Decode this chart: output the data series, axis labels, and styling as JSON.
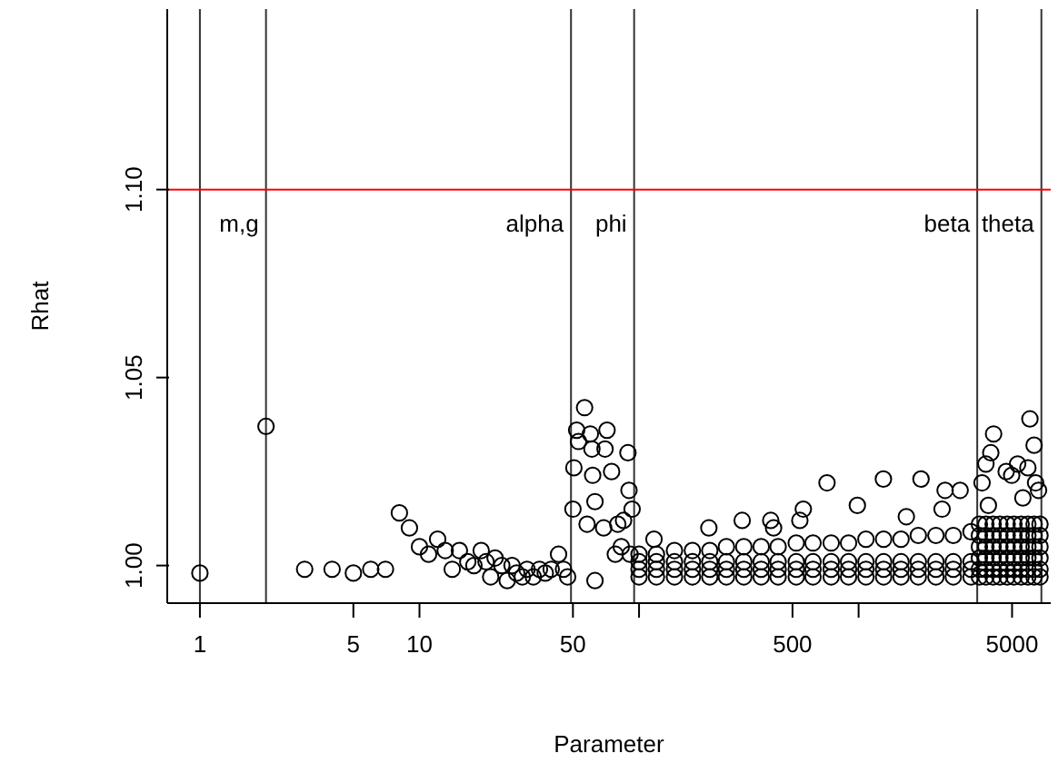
{
  "chart_data": {
    "type": "scatter",
    "xlabel": "Parameter",
    "ylabel": "Rhat",
    "log": "x",
    "marker": "circle",
    "xlim": [
      0.71,
      7500
    ],
    "ylim": [
      0.99,
      1.148
    ],
    "xticks": [
      1,
      5,
      10,
      50,
      {
        "value": 100,
        "label": null
      },
      500,
      {
        "value": 1000,
        "label": null
      },
      5000
    ],
    "yticks": [
      {
        "value": 1,
        "label": "1.00"
      },
      {
        "value": 1.05,
        "label": "1.05"
      },
      {
        "value": 1.1,
        "label": "1.10"
      }
    ],
    "ref_lines": [
      {
        "axis": "x",
        "value": 1,
        "label": null,
        "color": "#333333"
      },
      {
        "axis": "x",
        "value": 2,
        "label": "m,g",
        "color": "#333333"
      },
      {
        "axis": "x",
        "value": 49,
        "label": "alpha",
        "color": "#333333"
      },
      {
        "axis": "x",
        "value": 95,
        "label": "phi",
        "color": "#333333"
      },
      {
        "axis": "x",
        "value": 3470,
        "label": "beta",
        "color": "#333333"
      },
      {
        "axis": "x",
        "value": 6800,
        "label": "theta",
        "color": "#333333"
      },
      {
        "axis": "y",
        "value": 1.1,
        "label": null,
        "color": "#ff0000"
      }
    ],
    "series": [
      {
        "color": "#000000",
        "x": [
          1,
          2
        ],
        "values": [
          0.998,
          1.037
        ]
      },
      {
        "color": "#000000",
        "x": [
          3,
          4,
          5,
          6,
          7,
          8.1,
          9,
          10,
          11,
          12.1,
          13.1,
          14.1,
          15.2,
          16.6,
          17.7,
          19.1,
          20.1,
          21.1,
          22.1,
          23.7,
          25.1,
          26.4,
          27.7,
          29.4,
          30.9,
          33,
          35.2,
          37.4,
          39.8,
          43,
          45.3,
          47.3
        ],
        "values": [
          0.999,
          0.999,
          0.998,
          0.999,
          0.999,
          1.014,
          1.01,
          1.005,
          1.003,
          1.007,
          1.004,
          0.999,
          1.004,
          1.001,
          1.0,
          1.004,
          1.001,
          0.997,
          1.002,
          1.0,
          0.996,
          1.0,
          0.998,
          0.997,
          0.999,
          0.997,
          0.999,
          0.998,
          0.999,
          1.003,
          0.999,
          0.997
        ]
      },
      {
        "color": "#000000",
        "x": [
          50,
          50.5,
          52,
          53,
          56.5,
          60,
          61,
          61.5,
          58,
          63,
          63,
          69,
          70,
          71.5,
          75,
          78,
          80,
          83,
          85,
          89,
          90,
          91,
          93
        ],
        "values": [
          1.015,
          1.026,
          1.036,
          1.033,
          1.042,
          1.035,
          1.031,
          1.024,
          1.011,
          1.017,
          0.996,
          1.01,
          1.031,
          1.036,
          1.025,
          1.003,
          1.011,
          1.005,
          1.012,
          1.03,
          1.02,
          1.003,
          1.015
        ]
      },
      {
        "color": "#000000",
        "x": [
          100,
          120,
          145,
          175,
          210,
          250,
          300,
          360,
          430,
          520,
          620,
          750,
          900,
          1080,
          1300,
          1560,
          1870,
          2250,
          2700,
          3250,
          100,
          120,
          145,
          175,
          210,
          250,
          300,
          360,
          430,
          520,
          620,
          750,
          900,
          1080,
          1300,
          1560,
          1870,
          2250,
          2700,
          3250,
          100,
          120,
          145,
          175,
          210,
          250,
          300,
          360,
          430,
          520,
          620,
          750,
          900,
          1080,
          1300,
          1560,
          1870,
          2250,
          2700,
          3250,
          100,
          120,
          145,
          175,
          210,
          250,
          300,
          360,
          430,
          520,
          620,
          750,
          900,
          1080,
          1300,
          1560,
          1870,
          2250,
          2700,
          3250,
          117,
          208,
          295,
          398,
          410,
          540,
          560,
          718,
          987,
          1297,
          1650,
          1924,
          2400,
          2477,
          2900
        ],
        "values": [
          0.997,
          0.997,
          0.997,
          0.997,
          0.997,
          0.997,
          0.997,
          0.997,
          0.997,
          0.997,
          0.997,
          0.997,
          0.997,
          0.997,
          0.997,
          0.997,
          0.997,
          0.997,
          0.997,
          0.997,
          0.999,
          0.999,
          0.999,
          0.999,
          0.999,
          0.999,
          0.999,
          0.999,
          0.999,
          0.999,
          0.999,
          0.999,
          0.999,
          0.999,
          0.999,
          0.999,
          0.999,
          0.999,
          0.999,
          0.999,
          1.001,
          1.001,
          1.001,
          1.001,
          1.001,
          1.001,
          1.001,
          1.001,
          1.001,
          1.001,
          1.001,
          1.001,
          1.001,
          1.001,
          1.001,
          1.001,
          1.001,
          1.001,
          1.001,
          1.001,
          1.003,
          1.003,
          1.004,
          1.004,
          1.004,
          1.005,
          1.005,
          1.005,
          1.005,
          1.006,
          1.006,
          1.006,
          1.006,
          1.007,
          1.007,
          1.007,
          1.008,
          1.008,
          1.008,
          1.009,
          1.007,
          1.01,
          1.012,
          1.012,
          1.01,
          1.012,
          1.015,
          1.022,
          1.016,
          1.023,
          1.013,
          1.023,
          1.015,
          1.02,
          1.02
        ]
      },
      {
        "color": "#000000",
        "x": [
          3550,
          3800,
          4100,
          4400,
          4750,
          5100,
          5500,
          5900,
          6300,
          6700,
          3550,
          3800,
          4100,
          4400,
          4750,
          5100,
          5500,
          5900,
          6300,
          6700,
          3550,
          3800,
          4100,
          4400,
          4750,
          5100,
          5500,
          5900,
          6300,
          6700,
          3550,
          3800,
          4100,
          4400,
          4750,
          5100,
          5500,
          5900,
          6300,
          6700,
          3550,
          3800,
          4100,
          4400,
          4750,
          5100,
          5500,
          5900,
          6300,
          6700,
          3550,
          3800,
          4100,
          4400,
          4750,
          5100,
          5500,
          5900,
          6300,
          6700,
          3650,
          3800,
          4000,
          4120,
          4700,
          4980,
          5300,
          5900,
          6030,
          6300,
          6400,
          3900,
          5600,
          6600
        ],
        "values": [
          0.997,
          0.997,
          0.997,
          0.997,
          0.997,
          0.997,
          0.997,
          0.997,
          0.997,
          0.997,
          0.999,
          0.999,
          0.999,
          0.999,
          0.999,
          0.999,
          0.999,
          0.999,
          0.999,
          0.999,
          1.002,
          1.002,
          1.002,
          1.002,
          1.002,
          1.002,
          1.002,
          1.002,
          1.002,
          1.002,
          1.005,
          1.005,
          1.005,
          1.005,
          1.005,
          1.005,
          1.005,
          1.005,
          1.005,
          1.005,
          1.008,
          1.008,
          1.008,
          1.008,
          1.008,
          1.008,
          1.008,
          1.008,
          1.008,
          1.008,
          1.011,
          1.011,
          1.011,
          1.011,
          1.011,
          1.011,
          1.011,
          1.011,
          1.011,
          1.011,
          1.022,
          1.027,
          1.03,
          1.035,
          1.025,
          1.024,
          1.027,
          1.026,
          1.039,
          1.032,
          1.022,
          1.016,
          1.018,
          1.02
        ]
      }
    ]
  }
}
